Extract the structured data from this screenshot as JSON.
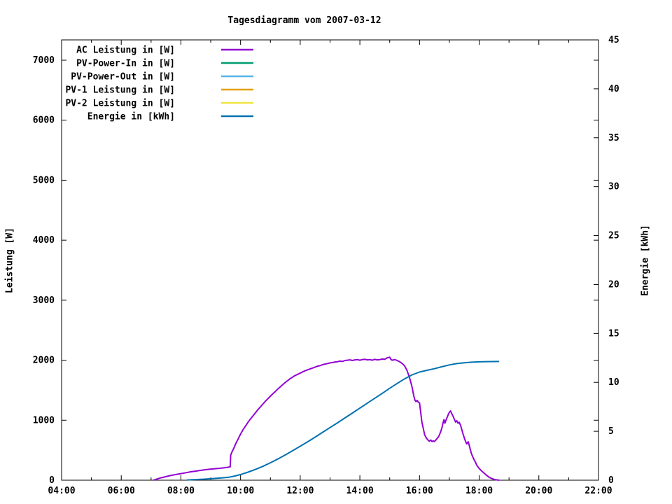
{
  "chart_data": {
    "type": "line",
    "title": "Tagesdiagramm vom 2007-03-12",
    "background": "#ffffff",
    "frame_color": "#000000",
    "grid": false,
    "legend": {
      "position": "top-left",
      "entries": [
        {
          "label": "AC Leistung in [W]",
          "color": "#9400D3"
        },
        {
          "label": "PV-Power-In in [W]",
          "color": "#009E73"
        },
        {
          "label": "PV-Power-Out in [W]",
          "color": "#56B4E9"
        },
        {
          "label": "PV-1 Leistung in [W]",
          "color": "#E69F00"
        },
        {
          "label": "PV-2 Leistung in [W]",
          "color": "#F0E442"
        },
        {
          "label": "Energie in [kWh]",
          "color": "#0072B2"
        }
      ]
    },
    "x_axis": {
      "label": "",
      "range_hours": [
        4,
        22
      ],
      "tick_hours": [
        4,
        6,
        8,
        10,
        12,
        14,
        16,
        18,
        20,
        22
      ],
      "tick_labels": [
        "04:00",
        "06:00",
        "08:00",
        "10:00",
        "12:00",
        "14:00",
        "16:00",
        "18:00",
        "20:00",
        "22:00"
      ],
      "minor_tick_hours": [
        5,
        7,
        9,
        11,
        13,
        15,
        17,
        19,
        21
      ]
    },
    "y_axis": {
      "label": "Leistung [W]",
      "range": [
        0,
        7340
      ],
      "ticks": [
        0,
        1000,
        2000,
        3000,
        4000,
        5000,
        6000,
        7000
      ]
    },
    "y2_axis": {
      "label": "Energie [kWh]",
      "range": [
        0,
        45
      ],
      "ticks": [
        0,
        5,
        10,
        15,
        20,
        25,
        30,
        35,
        40,
        45
      ]
    },
    "series": [
      {
        "name": "AC Leistung in [W]",
        "color": "#9400D3",
        "axis": "y1",
        "visible": true,
        "points": [
          [
            7.08,
            0
          ],
          [
            7.17,
            15
          ],
          [
            7.33,
            40
          ],
          [
            7.5,
            60
          ],
          [
            7.67,
            80
          ],
          [
            7.83,
            95
          ],
          [
            8.0,
            110
          ],
          [
            8.17,
            125
          ],
          [
            8.33,
            140
          ],
          [
            8.5,
            152
          ],
          [
            8.67,
            165
          ],
          [
            8.83,
            175
          ],
          [
            9.0,
            185
          ],
          [
            9.17,
            192
          ],
          [
            9.33,
            200
          ],
          [
            9.5,
            210
          ],
          [
            9.6,
            218
          ],
          [
            9.65,
            222
          ],
          [
            9.67,
            420
          ],
          [
            9.72,
            480
          ],
          [
            9.78,
            540
          ],
          [
            9.83,
            600
          ],
          [
            9.92,
            690
          ],
          [
            10.0,
            770
          ],
          [
            10.08,
            840
          ],
          [
            10.17,
            905
          ],
          [
            10.25,
            965
          ],
          [
            10.33,
            1020
          ],
          [
            10.42,
            1075
          ],
          [
            10.5,
            1125
          ],
          [
            10.58,
            1175
          ],
          [
            10.67,
            1225
          ],
          [
            10.75,
            1270
          ],
          [
            10.83,
            1315
          ],
          [
            10.92,
            1360
          ],
          [
            11.0,
            1400
          ],
          [
            11.08,
            1440
          ],
          [
            11.17,
            1480
          ],
          [
            11.25,
            1520
          ],
          [
            11.33,
            1555
          ],
          [
            11.42,
            1595
          ],
          [
            11.5,
            1630
          ],
          [
            11.58,
            1660
          ],
          [
            11.67,
            1695
          ],
          [
            11.75,
            1720
          ],
          [
            11.83,
            1745
          ],
          [
            11.92,
            1765
          ],
          [
            12.0,
            1785
          ],
          [
            12.08,
            1805
          ],
          [
            12.17,
            1825
          ],
          [
            12.25,
            1840
          ],
          [
            12.33,
            1855
          ],
          [
            12.42,
            1870
          ],
          [
            12.5,
            1885
          ],
          [
            12.58,
            1900
          ],
          [
            12.67,
            1910
          ],
          [
            12.75,
            1925
          ],
          [
            12.83,
            1935
          ],
          [
            12.92,
            1945
          ],
          [
            13.0,
            1955
          ],
          [
            13.08,
            1960
          ],
          [
            13.17,
            1970
          ],
          [
            13.25,
            1975
          ],
          [
            13.33,
            1985
          ],
          [
            13.42,
            1980
          ],
          [
            13.5,
            1995
          ],
          [
            13.58,
            2000
          ],
          [
            13.67,
            2005
          ],
          [
            13.75,
            1995
          ],
          [
            13.83,
            2005
          ],
          [
            13.92,
            2010
          ],
          [
            14.0,
            2000
          ],
          [
            14.08,
            2010
          ],
          [
            14.17,
            2015
          ],
          [
            14.25,
            2005
          ],
          [
            14.33,
            2010
          ],
          [
            14.42,
            2000
          ],
          [
            14.5,
            2015
          ],
          [
            14.58,
            2005
          ],
          [
            14.67,
            2010
          ],
          [
            14.75,
            2020
          ],
          [
            14.83,
            2015
          ],
          [
            14.92,
            2040
          ],
          [
            15.0,
            2050
          ],
          [
            15.04,
            2015
          ],
          [
            15.08,
            2000
          ],
          [
            15.17,
            2010
          ],
          [
            15.25,
            1995
          ],
          [
            15.33,
            1975
          ],
          [
            15.42,
            1945
          ],
          [
            15.5,
            1905
          ],
          [
            15.58,
            1830
          ],
          [
            15.67,
            1700
          ],
          [
            15.75,
            1550
          ],
          [
            15.81,
            1400
          ],
          [
            15.85,
            1330
          ],
          [
            15.88,
            1310
          ],
          [
            15.92,
            1330
          ],
          [
            15.96,
            1300
          ],
          [
            16.0,
            1290
          ],
          [
            16.04,
            1130
          ],
          [
            16.08,
            970
          ],
          [
            16.13,
            850
          ],
          [
            16.17,
            760
          ],
          [
            16.21,
            720
          ],
          [
            16.25,
            690
          ],
          [
            16.29,
            665
          ],
          [
            16.33,
            650
          ],
          [
            16.38,
            670
          ],
          [
            16.42,
            645
          ],
          [
            16.46,
            655
          ],
          [
            16.5,
            645
          ],
          [
            16.54,
            665
          ],
          [
            16.58,
            690
          ],
          [
            16.63,
            720
          ],
          [
            16.67,
            760
          ],
          [
            16.71,
            810
          ],
          [
            16.75,
            870
          ],
          [
            16.79,
            960
          ],
          [
            16.82,
            1010
          ],
          [
            16.85,
            950
          ],
          [
            16.88,
            990
          ],
          [
            16.92,
            1040
          ],
          [
            16.96,
            1090
          ],
          [
            17.0,
            1130
          ],
          [
            17.04,
            1155
          ],
          [
            17.08,
            1110
          ],
          [
            17.13,
            1060
          ],
          [
            17.17,
            1010
          ],
          [
            17.21,
            970
          ],
          [
            17.25,
            990
          ],
          [
            17.29,
            950
          ],
          [
            17.33,
            965
          ],
          [
            17.38,
            910
          ],
          [
            17.42,
            840
          ],
          [
            17.46,
            770
          ],
          [
            17.5,
            705
          ],
          [
            17.54,
            650
          ],
          [
            17.58,
            605
          ],
          [
            17.63,
            640
          ],
          [
            17.67,
            575
          ],
          [
            17.71,
            495
          ],
          [
            17.75,
            430
          ],
          [
            17.79,
            385
          ],
          [
            17.83,
            340
          ],
          [
            17.88,
            295
          ],
          [
            17.92,
            250
          ],
          [
            17.96,
            220
          ],
          [
            18.0,
            195
          ],
          [
            18.08,
            155
          ],
          [
            18.17,
            115
          ],
          [
            18.25,
            80
          ],
          [
            18.33,
            50
          ],
          [
            18.42,
            28
          ],
          [
            18.5,
            14
          ],
          [
            18.58,
            6
          ],
          [
            18.67,
            0
          ]
        ]
      },
      {
        "name": "PV-Power-In in [W]",
        "color": "#009E73",
        "axis": "y1",
        "visible": false,
        "points": []
      },
      {
        "name": "PV-Power-Out in [W]",
        "color": "#56B4E9",
        "axis": "y1",
        "visible": false,
        "points": []
      },
      {
        "name": "PV-1 Leistung in [W]",
        "color": "#E69F00",
        "axis": "y1",
        "visible": false,
        "points": []
      },
      {
        "name": "PV-2 Leistung in [W]",
        "color": "#F0E442",
        "axis": "y1",
        "visible": false,
        "points": []
      },
      {
        "name": "Energie in [kWh]",
        "color": "#0072B2",
        "axis": "y2",
        "visible": true,
        "points": [
          [
            8.2,
            0.02
          ],
          [
            8.4,
            0.05
          ],
          [
            8.6,
            0.08
          ],
          [
            8.8,
            0.11
          ],
          [
            9.0,
            0.15
          ],
          [
            9.2,
            0.19
          ],
          [
            9.4,
            0.24
          ],
          [
            9.6,
            0.3
          ],
          [
            9.8,
            0.42
          ],
          [
            10.0,
            0.58
          ],
          [
            10.25,
            0.82
          ],
          [
            10.5,
            1.1
          ],
          [
            10.75,
            1.42
          ],
          [
            11.0,
            1.78
          ],
          [
            11.25,
            2.17
          ],
          [
            11.5,
            2.58
          ],
          [
            11.75,
            3.02
          ],
          [
            12.0,
            3.47
          ],
          [
            12.25,
            3.93
          ],
          [
            12.5,
            4.4
          ],
          [
            12.75,
            4.89
          ],
          [
            13.0,
            5.38
          ],
          [
            13.25,
            5.87
          ],
          [
            13.5,
            6.37
          ],
          [
            13.75,
            6.87
          ],
          [
            14.0,
            7.37
          ],
          [
            14.25,
            7.88
          ],
          [
            14.5,
            8.38
          ],
          [
            14.75,
            8.88
          ],
          [
            15.0,
            9.39
          ],
          [
            15.25,
            9.89
          ],
          [
            15.5,
            10.36
          ],
          [
            15.75,
            10.77
          ],
          [
            16.0,
            11.05
          ],
          [
            16.25,
            11.23
          ],
          [
            16.5,
            11.4
          ],
          [
            16.75,
            11.6
          ],
          [
            17.0,
            11.78
          ],
          [
            17.25,
            11.92
          ],
          [
            17.5,
            12.0
          ],
          [
            17.75,
            12.06
          ],
          [
            18.0,
            12.1
          ],
          [
            18.25,
            12.12
          ],
          [
            18.67,
            12.13
          ]
        ]
      }
    ]
  }
}
